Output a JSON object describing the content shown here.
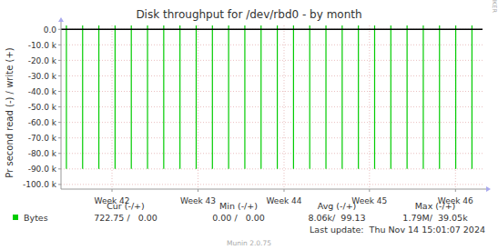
{
  "chart_data": {
    "type": "bar",
    "title": "Disk throughput for /dev/rbd0 - by month",
    "y_label": "Pr second read (-) / write (+)",
    "side_label": "RRDTOOL / TOBI OETIKER",
    "x": [
      0.44,
      1.76,
      3.08,
      4.4,
      5.72,
      7.04,
      8.36,
      9.68,
      11.0,
      12.32,
      13.64,
      14.96,
      16.28,
      17.6,
      18.92,
      20.24,
      21.56,
      22.88,
      24.2,
      25.52,
      26.84,
      28.16,
      29.48,
      30.8,
      32.12,
      33.44
    ],
    "series": [
      {
        "name": "Bytes",
        "color": "#00cc00",
        "values": [
          -90000,
          -90000,
          -90000,
          -90000,
          -90000,
          -90000,
          -90000,
          -90000,
          -90000,
          -90000,
          -90000,
          -90000,
          -90000,
          -90000,
          -90000,
          -90000,
          -90000,
          -90000,
          -90000,
          -90000,
          -90000,
          -90000,
          -90000,
          -90000,
          -90000,
          -90000
        ]
      },
      {
        "color": "#00cc00",
        "values": [
          2500,
          2500,
          2500,
          2500,
          2500,
          2500,
          2500,
          2500,
          2500,
          2500,
          2500,
          2500,
          2500,
          2500,
          2500,
          2500,
          2500,
          2500,
          2500,
          2500,
          2500,
          2500,
          2500,
          2500,
          2500,
          2500
        ]
      }
    ],
    "xlim": [
      0,
      34.3
    ],
    "xticks": [
      {
        "value": 4.15,
        "label": "Week 42"
      },
      {
        "value": 11.15,
        "label": "Week 43"
      },
      {
        "value": 18.15,
        "label": "Week 44"
      },
      {
        "value": 25.1,
        "label": "Week 45"
      },
      {
        "value": 32.1,
        "label": "Week 46"
      }
    ],
    "ylim": [
      -103000,
      2500
    ],
    "yticks": [
      {
        "value": -100000,
        "label": "-100.0 k"
      },
      {
        "value": -90000,
        "label": "-90.0 k"
      },
      {
        "value": -80000,
        "label": "-80.0 k"
      },
      {
        "value": -70000,
        "label": "-70.0 k"
      },
      {
        "value": -60000,
        "label": "-60.0 k"
      },
      {
        "value": -50000,
        "label": "-50.0 k"
      },
      {
        "value": -40000,
        "label": "-40.0 k"
      },
      {
        "value": -30000,
        "label": "-30.0 k"
      },
      {
        "value": -20000,
        "label": "-20.0 k"
      },
      {
        "value": -10000,
        "label": "-10.0 k"
      },
      {
        "value": 0,
        "label": "0.0"
      }
    ],
    "grid": true,
    "stats": {
      "headers": [
        "Cur (-/+)",
        "Min (-/+)",
        "Avg (-/+)",
        "Max (-/+)"
      ],
      "values": [
        "722.75 /   0.00",
        "0.00 /   0.00",
        "8.06k/  99.13",
        "1.79M/  39.05k"
      ]
    },
    "last_update": "Last update:  Thu Nov 14 15:01:07 2024",
    "footer": "Munin 2.0.75"
  }
}
